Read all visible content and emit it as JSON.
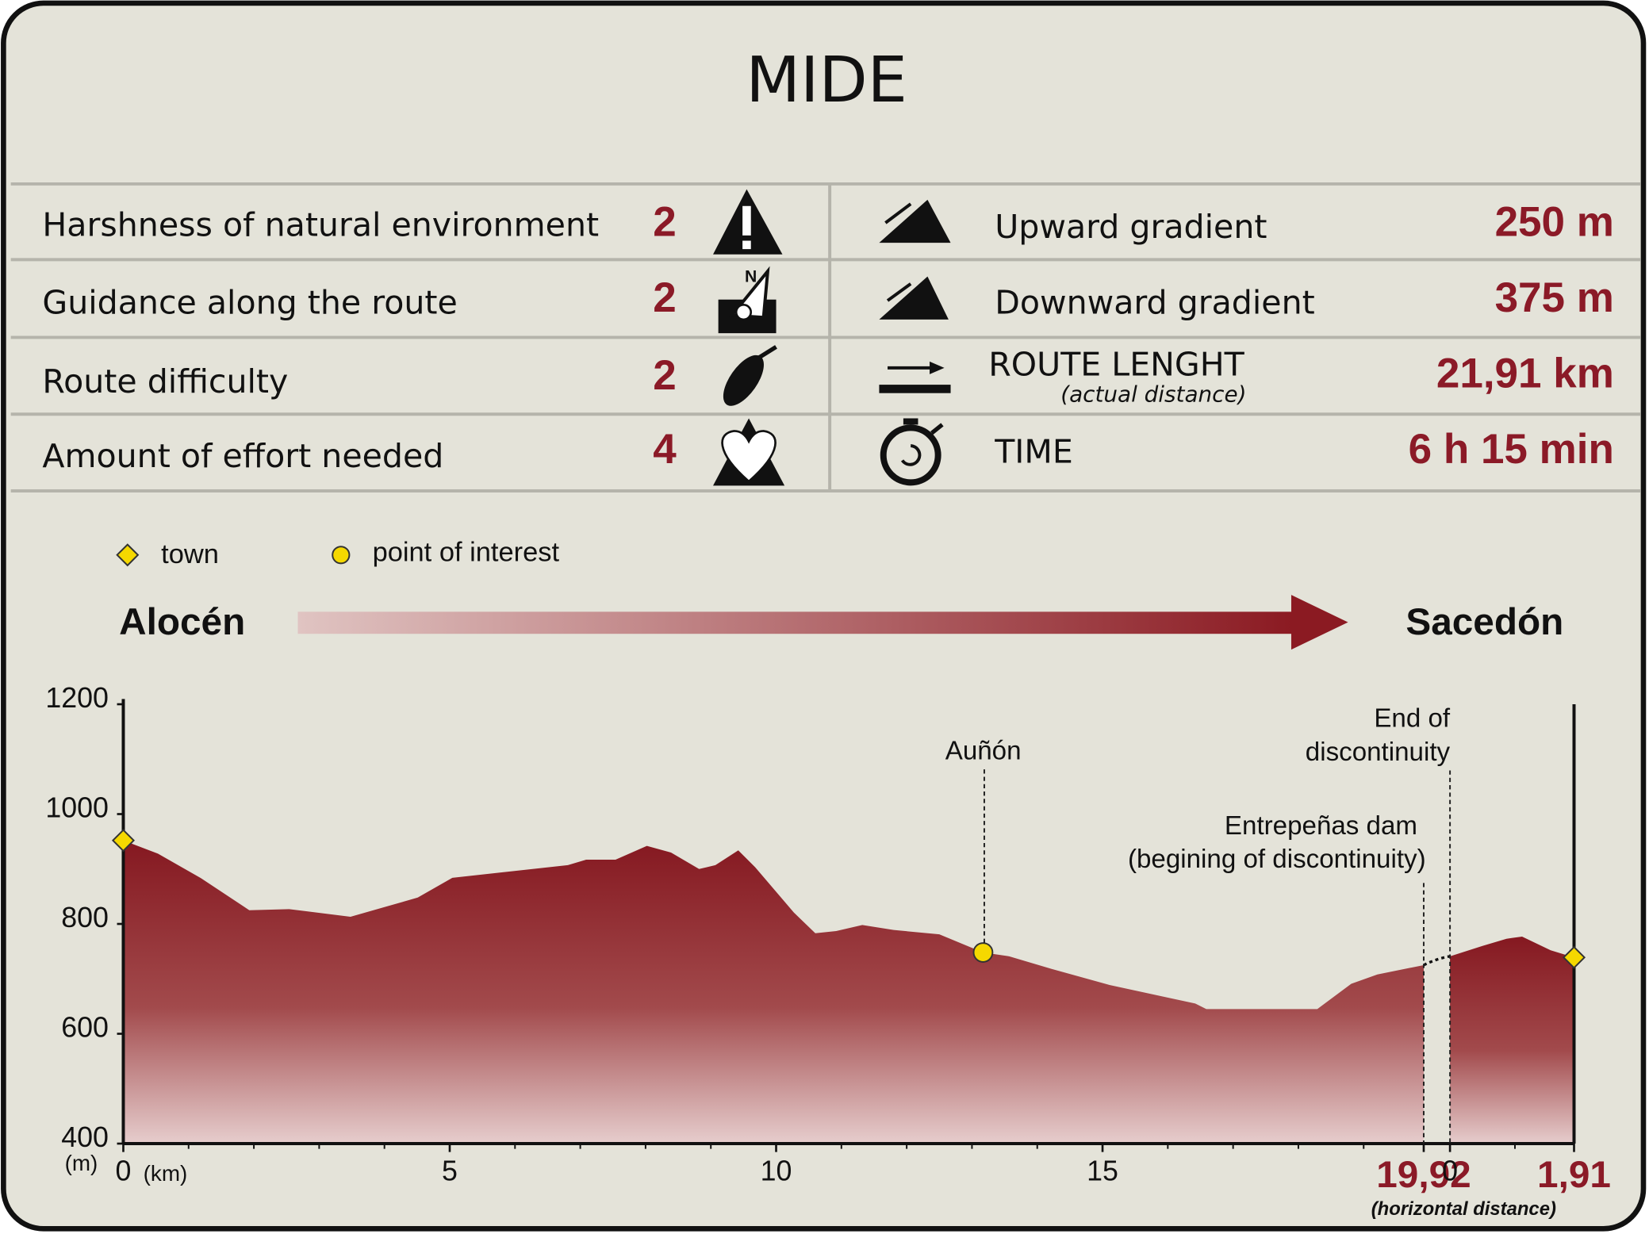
{
  "header": {
    "title": "MIDE"
  },
  "mide": {
    "left": [
      {
        "label": "Harshness of natural environment",
        "value": 2
      },
      {
        "label": "Guidance along the route",
        "value": 2
      },
      {
        "label": "Route difficulty",
        "value": 2
      },
      {
        "label": "Amount of effort needed",
        "value": 4
      }
    ],
    "right": [
      {
        "label": "Upward gradient",
        "value": "250 m"
      },
      {
        "label": "Downward gradient",
        "value": "375 m"
      },
      {
        "label": "ROUTE LENGHT",
        "note": "(actual distance)",
        "value": "21,91 km"
      },
      {
        "label": "TIME",
        "value": "6 h 15 min"
      }
    ]
  },
  "legend": {
    "town": "town",
    "poi": "point of interest"
  },
  "route": {
    "from": "Alocén",
    "to": "Sacedón"
  },
  "chart_data": {
    "type": "area",
    "color": "#8b1a22",
    "y_unit": "(m)",
    "x_unit": "(km)",
    "x_note": "(horizontal distance)",
    "ylim": [
      400,
      1200
    ],
    "yticks": [
      400,
      600,
      800,
      1000,
      1200
    ],
    "segments": [
      {
        "xlim": [
          0,
          19.92
        ],
        "xticks": [
          0,
          5,
          10,
          15,
          {
            "value": 19.92,
            "label": "19,92"
          }
        ],
        "x": [
          0,
          0.53,
          1.18,
          1.93,
          2.54,
          3.48,
          4.51,
          5.04,
          6.81,
          7.09,
          7.54,
          8.02,
          8.39,
          8.82,
          9.07,
          9.42,
          9.68,
          10.27,
          10.6,
          10.92,
          11.32,
          11.8,
          12.5,
          13.17,
          13.57,
          14.22,
          15.1,
          15.99,
          16.42,
          16.59,
          18.29,
          18.81,
          19.21,
          19.92
        ],
        "values": [
          952,
          928,
          884,
          825,
          827,
          813,
          848,
          884,
          907,
          917,
          917,
          942,
          930,
          900,
          907,
          934,
          903,
          821,
          783,
          787,
          798,
          789,
          781,
          748,
          741,
          718,
          689,
          666,
          655,
          645,
          645,
          691,
          708,
          725
        ]
      },
      {
        "xlim": [
          0,
          1.91
        ],
        "xticks": [
          0,
          {
            "value": 1.91,
            "label": "1,91"
          }
        ],
        "x": [
          0,
          0.5,
          0.87,
          1.11,
          1.55,
          1.91
        ],
        "values": [
          741,
          760,
          773,
          777,
          752,
          739
        ]
      }
    ],
    "annotations": [
      {
        "lines": [
          "Auñón"
        ]
      },
      {
        "lines": [
          "End of",
          "discontinuity"
        ]
      },
      {
        "lines": [
          "Entrepeñas dam",
          "(begining of discontinuity)"
        ]
      }
    ]
  }
}
